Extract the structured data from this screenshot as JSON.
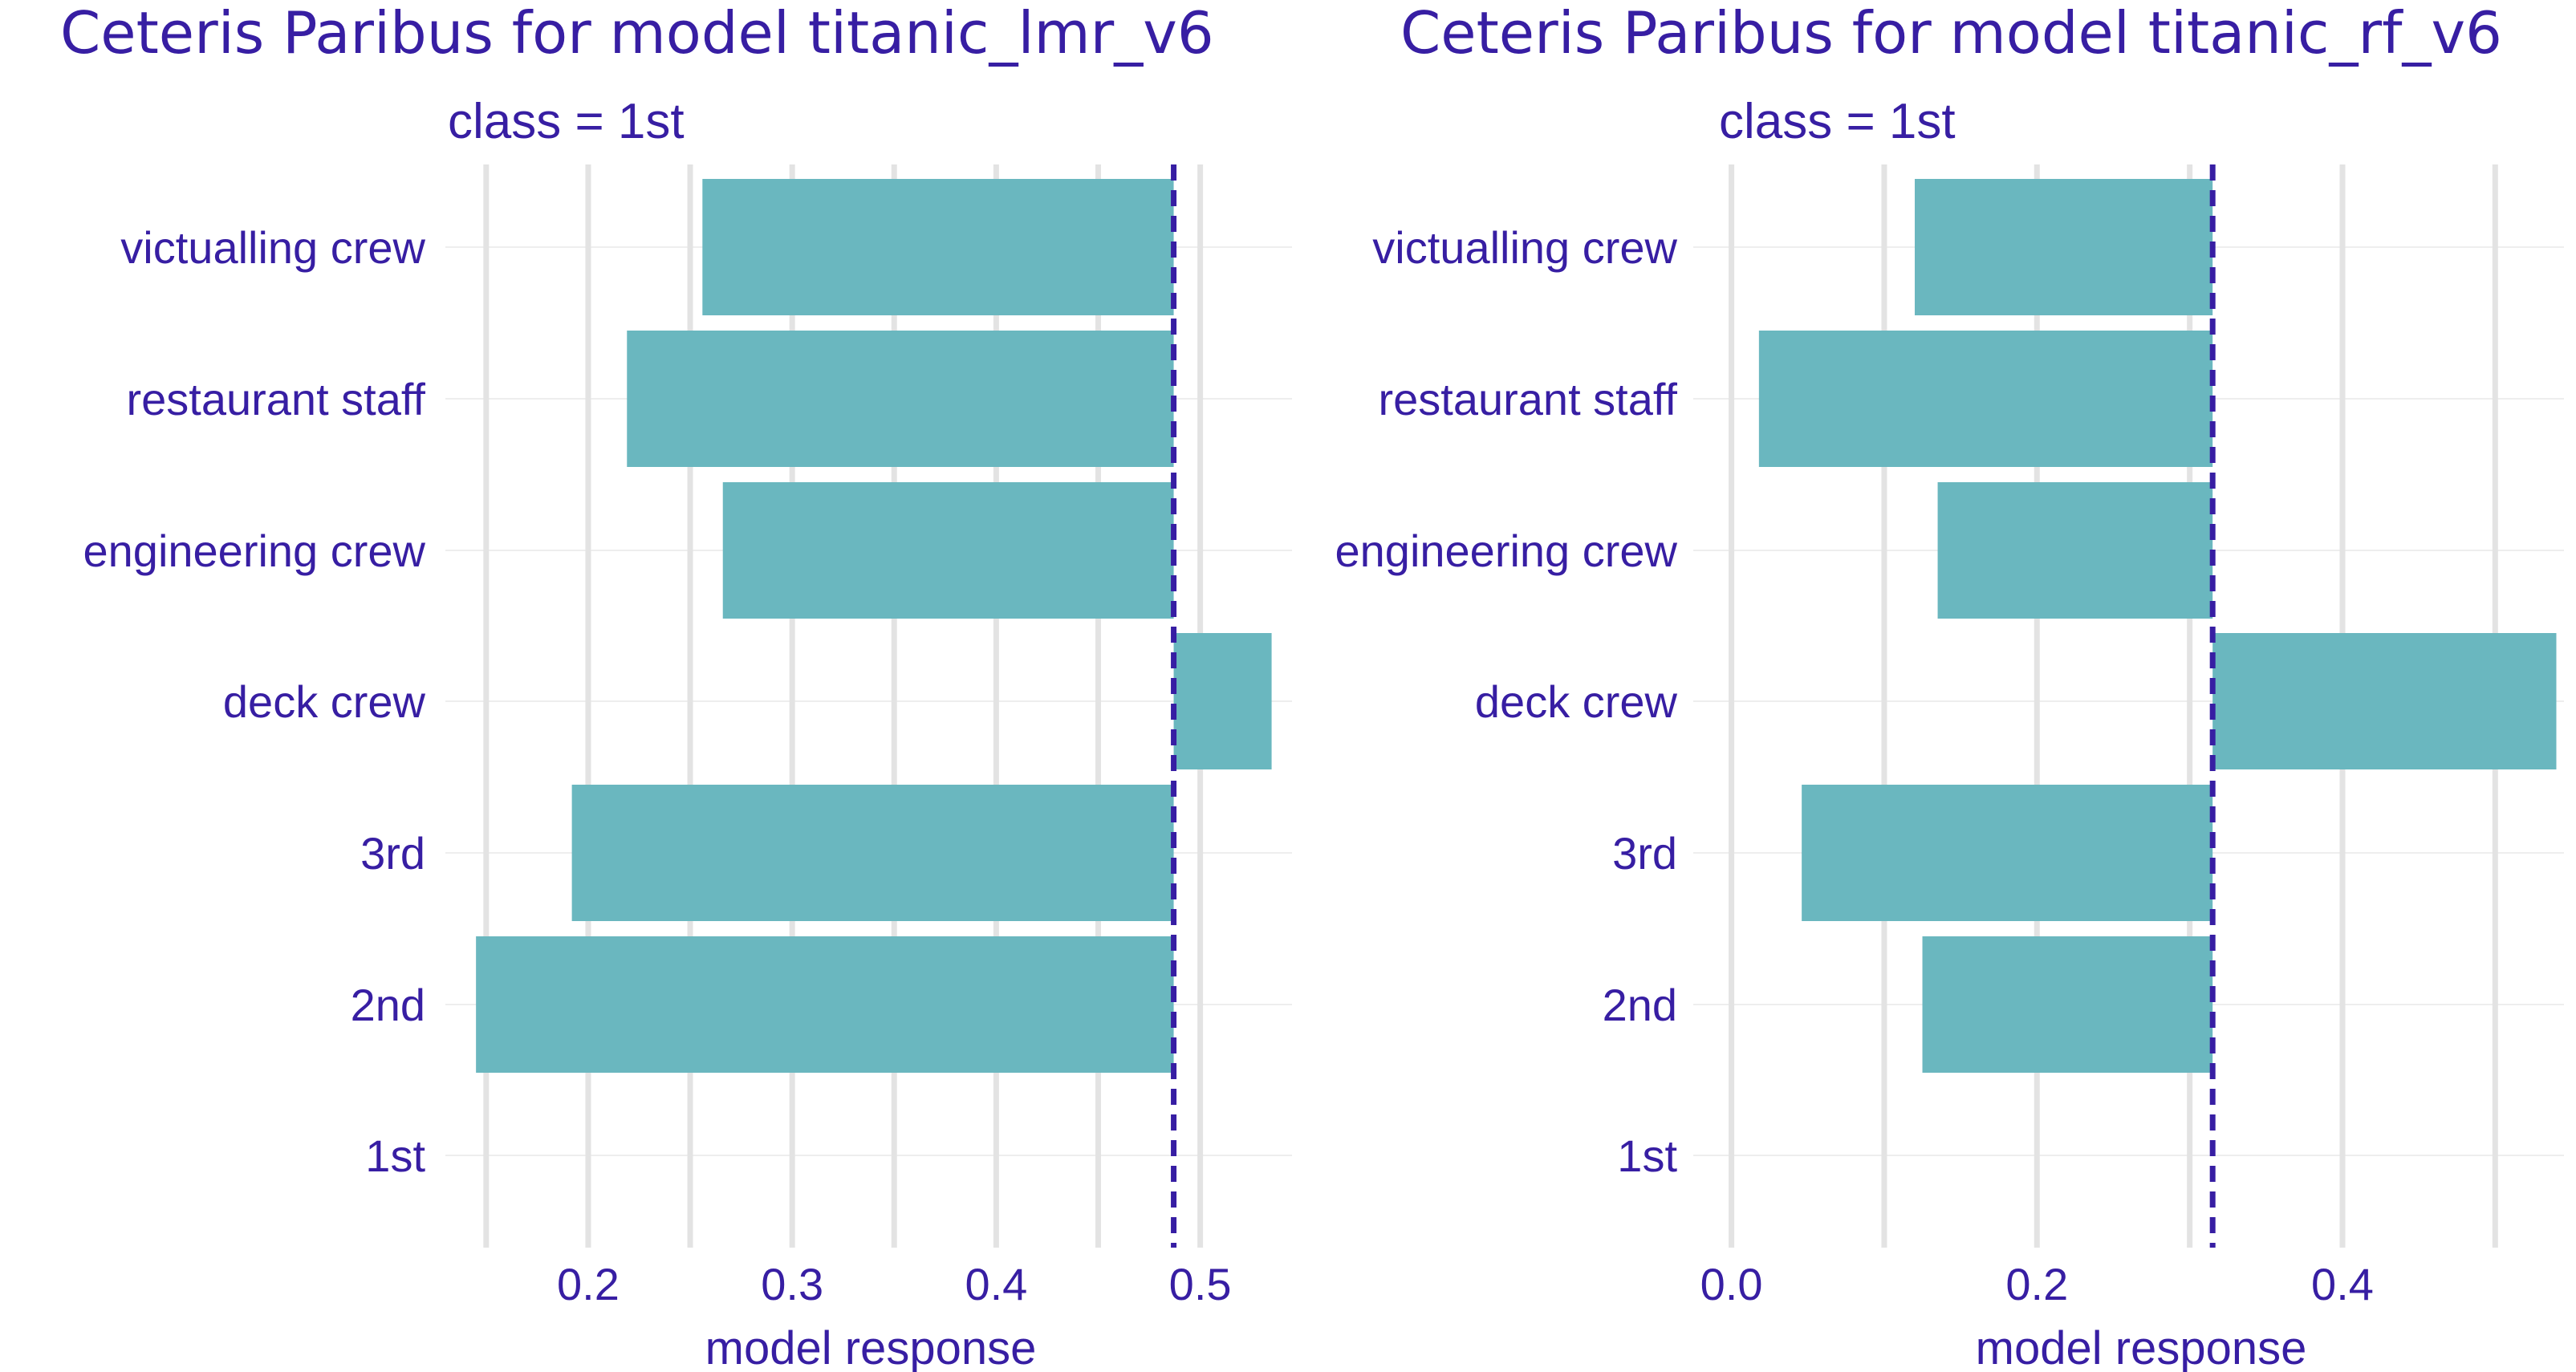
{
  "chart_data": [
    {
      "type": "bar",
      "orientation": "horizontal",
      "title": "Ceteris Paribus for model titanic_lmr_v6",
      "subtitle": "class = 1st",
      "xlabel": "model response",
      "ylabel": "",
      "categories": [
        "victualling crew",
        "restaurant staff",
        "engineering crew",
        "deck crew",
        "3rd",
        "2nd",
        "1st"
      ],
      "values": [
        0.256,
        0.219,
        0.266,
        0.535,
        0.192,
        0.145,
        0.487
      ],
      "baseline": 0.487,
      "xlim": [
        0.13,
        0.545
      ],
      "xticks": [
        0.2,
        0.3,
        0.4,
        0.5
      ],
      "xtick_labels": [
        "0.2",
        "0.3",
        "0.4",
        "0.5"
      ],
      "grid": true
    },
    {
      "type": "bar",
      "orientation": "horizontal",
      "title": "Ceteris Paribus for model titanic_rf_v6",
      "subtitle": "class = 1st",
      "xlabel": "model response",
      "ylabel": "",
      "categories": [
        "victualling crew",
        "restaurant staff",
        "engineering crew",
        "deck crew",
        "3rd",
        "2nd",
        "1st"
      ],
      "values": [
        0.12,
        0.018,
        0.135,
        0.54,
        0.046,
        0.125,
        0.315
      ],
      "baseline": 0.315,
      "xlim": [
        -0.025,
        0.545
      ],
      "xticks": [
        0.0,
        0.2,
        0.4
      ],
      "xtick_labels": [
        "0.0",
        "0.2",
        "0.4"
      ],
      "grid": true
    }
  ],
  "colors": {
    "bar": "#6ab7bf",
    "text": "#371ea3",
    "baseline": "#371ea3",
    "grid_major": "#e3e3e3",
    "grid_minor": "#eeeeee"
  }
}
